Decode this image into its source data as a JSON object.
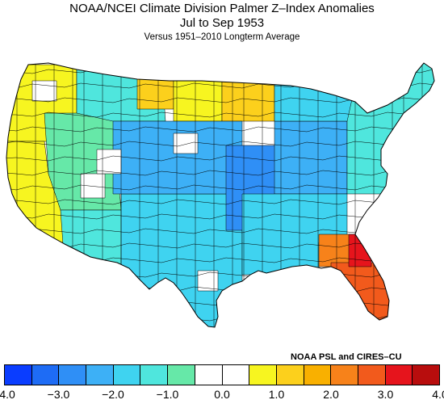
{
  "title": "NOAA/NCEI Climate Division Palmer Z–Index Anomalies",
  "period": "Jul to Sep 1953",
  "subtitle": "Versus 1951–2010 Longterm Average",
  "credit": "NOAA PSL and CIRES–CU",
  "colorbar": {
    "colors": [
      "#0a3dff",
      "#1e6cf5",
      "#2f8ff6",
      "#3db0f6",
      "#3fd3f0",
      "#4fe6dd",
      "#66e8a8",
      "#ffffff",
      "#ffffff",
      "#f7f520",
      "#fcd01c",
      "#f9b000",
      "#f7821a",
      "#f25a1c",
      "#e6141c",
      "#b80d0d"
    ],
    "ticks": [
      "−4.0",
      "−3.0",
      "−2.0",
      "−1.0",
      "0.0",
      "1.0",
      "2.0",
      "3.0",
      "4.0"
    ]
  },
  "map": {
    "regions": [
      {
        "name": "pacific-northwest",
        "category": "1.0 to 2.0"
      },
      {
        "name": "california",
        "category": "1.0 to 2.0"
      },
      {
        "name": "great-basin",
        "category": "-1.0 to -2.0"
      },
      {
        "name": "northern-rockies",
        "category": "-1.0 to -2.0"
      },
      {
        "name": "montana-east",
        "category": "1.0 to 2.0"
      },
      {
        "name": "north-dakota",
        "category": "1.0 to 2.0"
      },
      {
        "name": "minnesota",
        "category": "2.0 to 2.5"
      },
      {
        "name": "southwest",
        "category": "-1.0 to -2.0"
      },
      {
        "name": "texas",
        "category": "-1.0 to -2.5"
      },
      {
        "name": "central-plains",
        "category": "-2.0 to -3.0"
      },
      {
        "name": "ozarks-mid-mississippi",
        "category": "-3.0 to -3.5"
      },
      {
        "name": "ohio-valley",
        "category": "-2.0 to -3.0"
      },
      {
        "name": "great-lakes",
        "category": "-1.0 to -2.0"
      },
      {
        "name": "northeast",
        "category": "-0.5 to -1.5"
      },
      {
        "name": "southeast-interior",
        "category": "-1.0 to -2.5"
      },
      {
        "name": "georgia",
        "category": "2.0 to 3.0"
      },
      {
        "name": "florida",
        "category": "3.0 to 3.5"
      },
      {
        "name": "georgia-coast",
        "category": "3.5 to 4.0"
      }
    ]
  }
}
